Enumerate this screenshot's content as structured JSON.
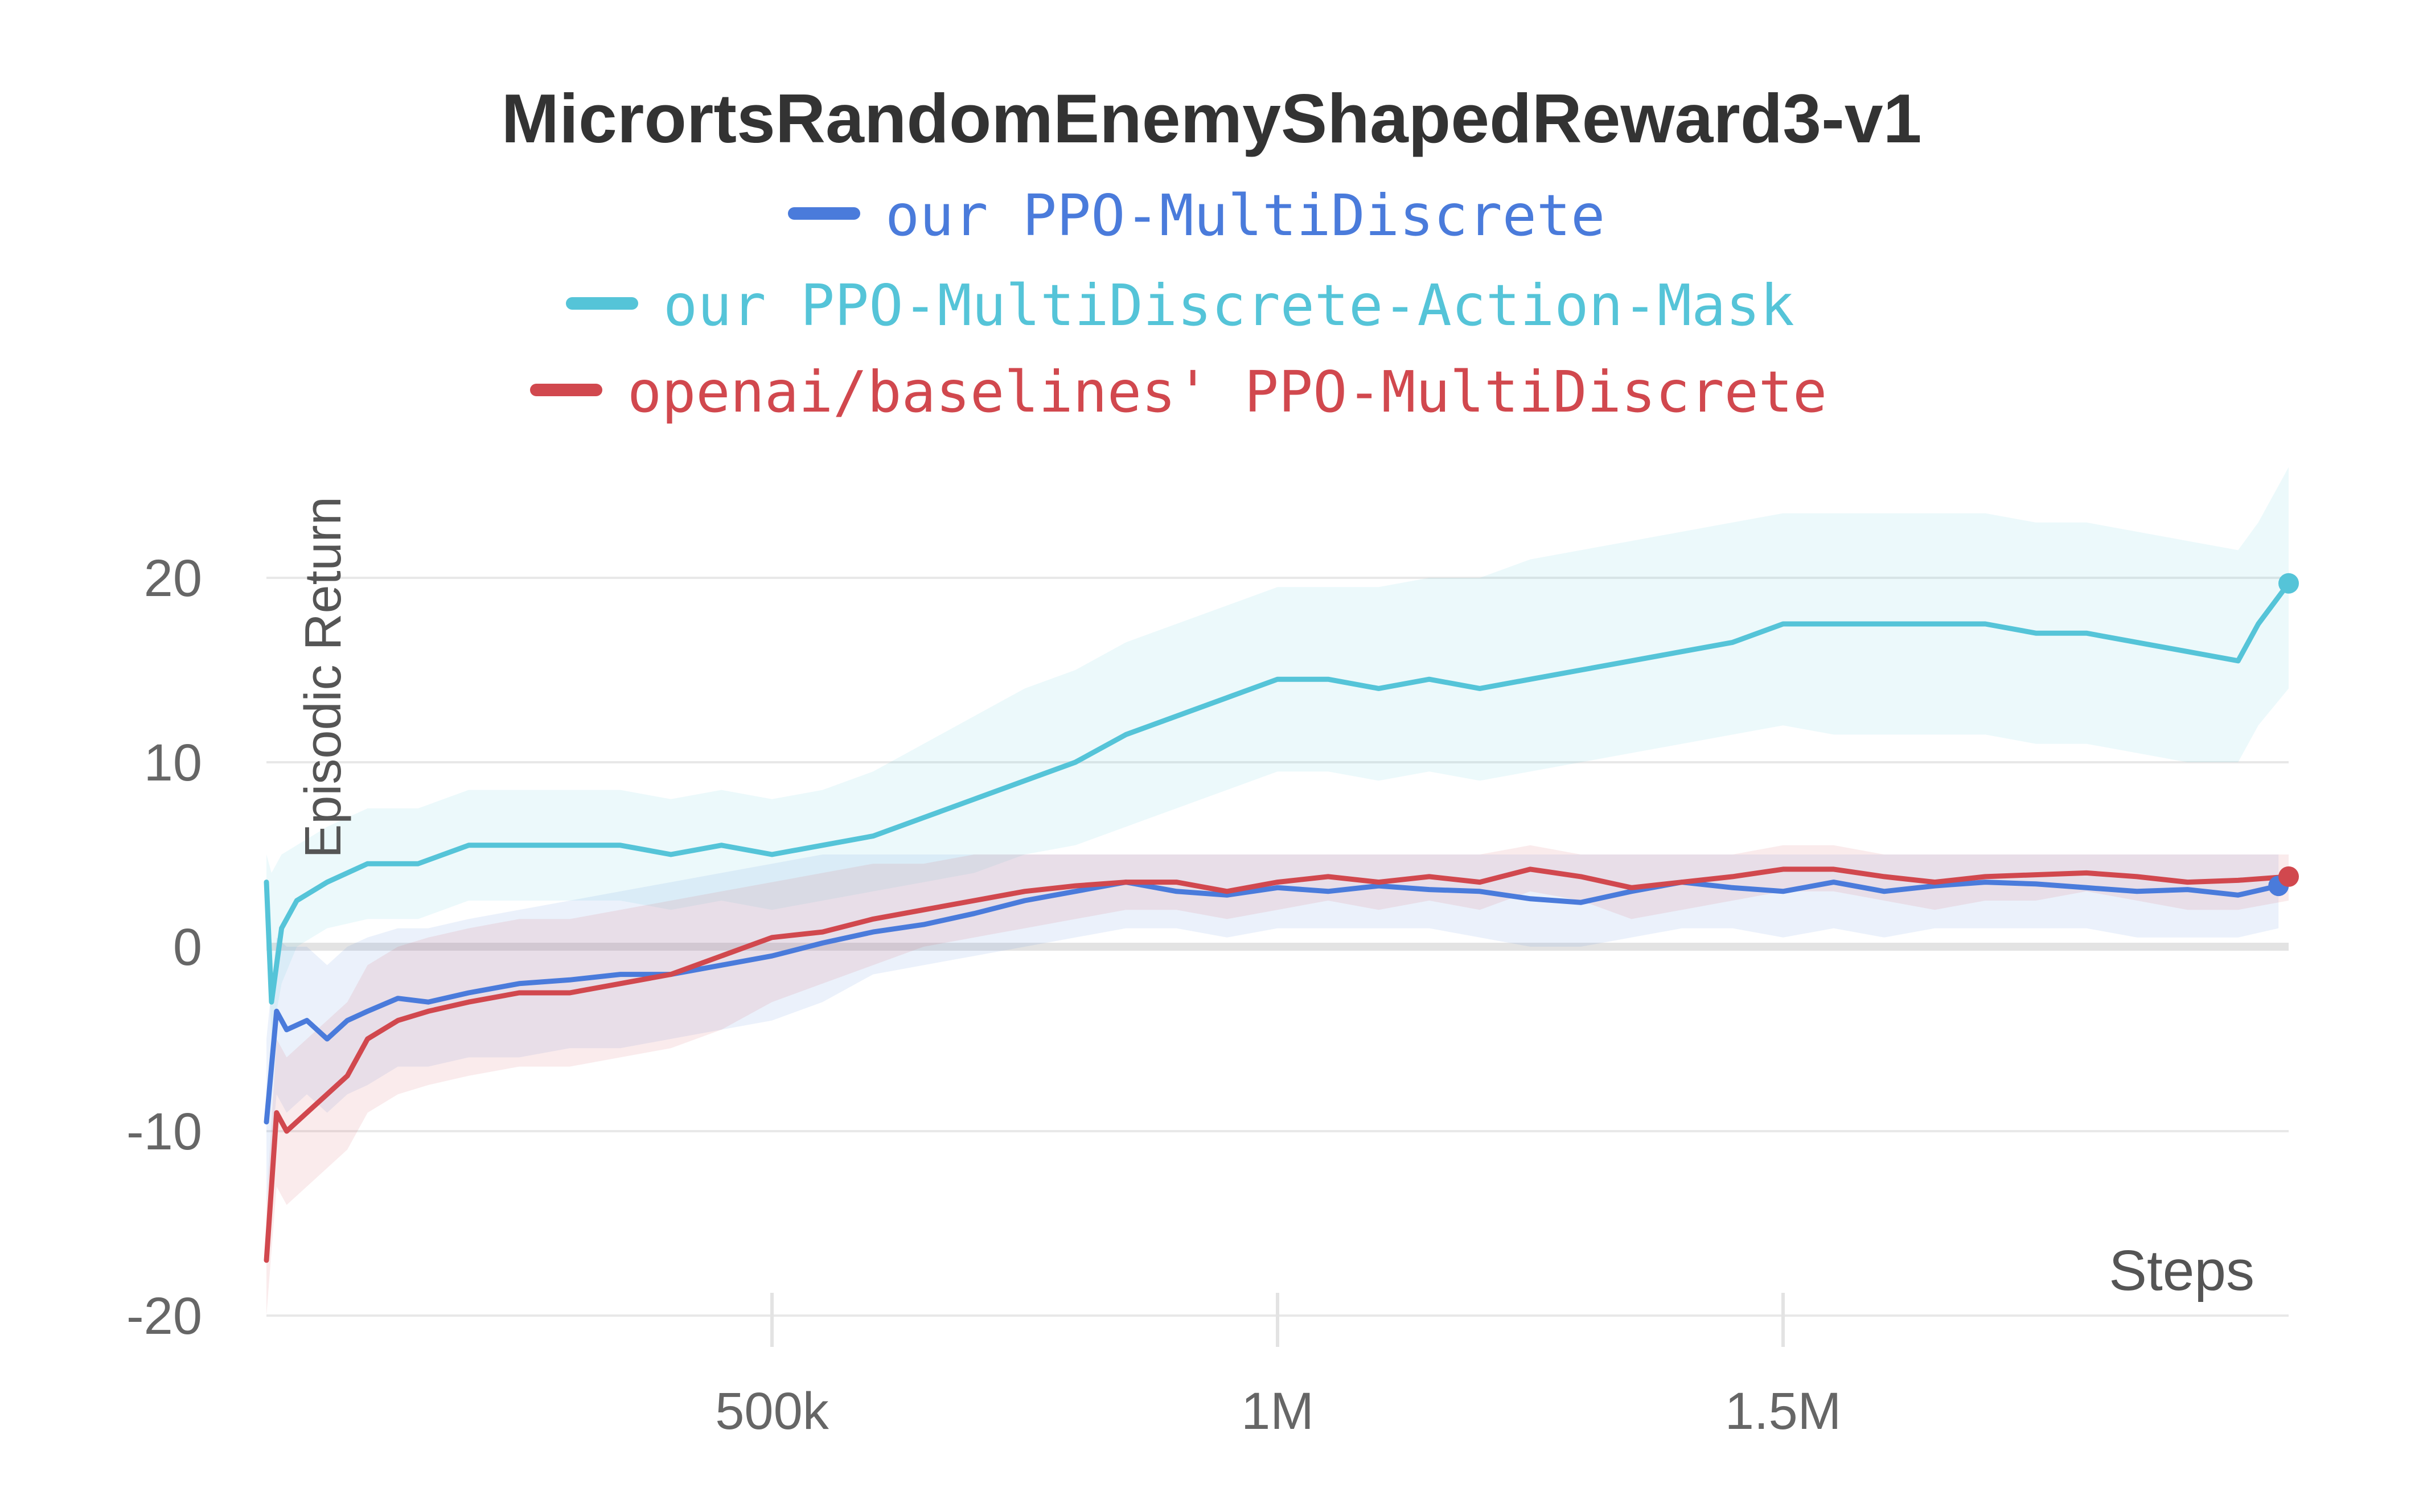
{
  "chart_data": {
    "type": "line",
    "title": "MicrortsRandomEnemyShapedReward3-v1",
    "xlabel": "Steps",
    "ylabel": "Episodic Return",
    "xlim": [
      0,
      2000000
    ],
    "ylim": [
      -20,
      27
    ],
    "x_ticks": [
      500000,
      1000000,
      1500000
    ],
    "x_tick_labels": [
      "500k",
      "1M",
      "1.5M"
    ],
    "y_ticks": [
      -20,
      -10,
      0,
      10,
      20
    ],
    "y_tick_labels": [
      "-20",
      "-10",
      "0",
      "10",
      "20"
    ],
    "grid": true,
    "legend_position": "top",
    "series": [
      {
        "name": "our PPO-MultiDiscrete",
        "color": "#4a7bdb",
        "x": [
          0,
          10000,
          20000,
          40000,
          60000,
          80000,
          100000,
          130000,
          160000,
          200000,
          250000,
          300000,
          350000,
          400000,
          450000,
          500000,
          550000,
          600000,
          650000,
          700000,
          750000,
          800000,
          850000,
          900000,
          950000,
          1000000,
          1050000,
          1100000,
          1150000,
          1200000,
          1250000,
          1300000,
          1350000,
          1400000,
          1450000,
          1500000,
          1550000,
          1600000,
          1650000,
          1700000,
          1750000,
          1800000,
          1850000,
          1900000,
          1950000,
          1990000
        ],
        "values": [
          -9.5,
          -3.5,
          -4.5,
          -4.0,
          -5.0,
          -4.0,
          -3.5,
          -2.8,
          -3.0,
          -2.5,
          -2.0,
          -1.8,
          -1.5,
          -1.5,
          -1.0,
          -0.5,
          0.2,
          0.8,
          1.2,
          1.8,
          2.5,
          3.0,
          3.5,
          3.0,
          2.8,
          3.2,
          3.0,
          3.3,
          3.1,
          3.0,
          2.6,
          2.4,
          3.0,
          3.5,
          3.2,
          3.0,
          3.5,
          3.0,
          3.3,
          3.5,
          3.4,
          3.2,
          3.0,
          3.1,
          2.8,
          3.3
        ],
        "upper": [
          -5,
          0.5,
          0,
          0,
          -1,
          0,
          0.5,
          1,
          1,
          1.5,
          2,
          2.5,
          3,
          3.5,
          4,
          4.5,
          5,
          5,
          5,
          5,
          5,
          5,
          5,
          5,
          5,
          5,
          5,
          5,
          5,
          5,
          5,
          5,
          5,
          5,
          5,
          5,
          5,
          5,
          5,
          5,
          5,
          5,
          5,
          5,
          5,
          5
        ],
        "lower": [
          -14,
          -8,
          -9,
          -8,
          -9,
          -8,
          -7.5,
          -6.5,
          -6.5,
          -6,
          -6,
          -5.5,
          -5.5,
          -5,
          -4.5,
          -4,
          -3,
          -1.5,
          -1,
          -0.5,
          0,
          0.5,
          1,
          1,
          0.5,
          1,
          1,
          1,
          1,
          0.5,
          0,
          0,
          0.5,
          1,
          1,
          0.5,
          1,
          0.5,
          1,
          1,
          1,
          1,
          0.5,
          0.5,
          0.5,
          1
        ]
      },
      {
        "name": "our PPO-MultiDiscrete-Action-Mask",
        "color": "#55c4d8",
        "x": [
          0,
          5000,
          15000,
          30000,
          60000,
          100000,
          150000,
          200000,
          250000,
          300000,
          350000,
          400000,
          450000,
          500000,
          550000,
          600000,
          650000,
          700000,
          750000,
          800000,
          850000,
          900000,
          950000,
          1000000,
          1050000,
          1100000,
          1150000,
          1200000,
          1250000,
          1300000,
          1350000,
          1400000,
          1450000,
          1500000,
          1550000,
          1600000,
          1650000,
          1700000,
          1750000,
          1800000,
          1850000,
          1900000,
          1950000,
          1970000,
          2000000
        ],
        "values": [
          3.5,
          -3.0,
          1.0,
          2.5,
          3.5,
          4.5,
          4.5,
          5.5,
          5.5,
          5.5,
          5.5,
          5.0,
          5.5,
          5.0,
          5.5,
          6.0,
          7.0,
          8.0,
          9.0,
          10.0,
          11.5,
          12.5,
          13.5,
          14.5,
          14.5,
          14.0,
          14.5,
          14.0,
          14.5,
          15.0,
          15.5,
          16.0,
          16.5,
          17.5,
          17.5,
          17.5,
          17.5,
          17.5,
          17.0,
          17.0,
          16.5,
          16.0,
          15.5,
          17.5,
          19.7
        ],
        "upper": [
          5,
          4,
          5,
          5.5,
          6.5,
          7.5,
          7.5,
          8.5,
          8.5,
          8.5,
          8.5,
          8,
          8.5,
          8,
          8.5,
          9.5,
          11,
          12.5,
          14,
          15,
          16.5,
          17.5,
          18.5,
          19.5,
          19.5,
          19.5,
          20,
          20,
          21,
          21.5,
          22,
          22.5,
          23,
          23.5,
          23.5,
          23.5,
          23.5,
          23.5,
          23,
          23,
          22.5,
          22,
          21.5,
          23,
          26
        ],
        "lower": [
          2,
          -5,
          -2,
          0,
          1,
          1.5,
          1.5,
          2.5,
          2.5,
          2.5,
          2.5,
          2,
          2.5,
          2,
          2.5,
          3,
          3.5,
          4,
          5,
          5.5,
          6.5,
          7.5,
          8.5,
          9.5,
          9.5,
          9,
          9.5,
          9,
          9.5,
          10,
          10.5,
          11,
          11.5,
          12,
          11.5,
          11.5,
          11.5,
          11.5,
          11,
          11,
          10.5,
          10,
          10,
          12,
          14
        ]
      },
      {
        "name": "openai/baselines' PPO-MultiDiscrete",
        "color": "#d1484e",
        "x": [
          0,
          10000,
          20000,
          40000,
          60000,
          80000,
          100000,
          130000,
          160000,
          200000,
          250000,
          300000,
          350000,
          400000,
          450000,
          500000,
          550000,
          600000,
          650000,
          700000,
          750000,
          800000,
          850000,
          900000,
          950000,
          1000000,
          1050000,
          1100000,
          1150000,
          1200000,
          1250000,
          1300000,
          1350000,
          1400000,
          1450000,
          1500000,
          1550000,
          1600000,
          1650000,
          1700000,
          1750000,
          1800000,
          1850000,
          1900000,
          1950000,
          2000000
        ],
        "values": [
          -17.0,
          -9.0,
          -10.0,
          -9.0,
          -8.0,
          -7.0,
          -5.0,
          -4.0,
          -3.5,
          -3.0,
          -2.5,
          -2.5,
          -2.0,
          -1.5,
          -0.5,
          0.5,
          0.8,
          1.5,
          2.0,
          2.5,
          3.0,
          3.3,
          3.5,
          3.5,
          3.0,
          3.5,
          3.8,
          3.5,
          3.8,
          3.5,
          4.2,
          3.8,
          3.2,
          3.5,
          3.8,
          4.2,
          4.2,
          3.8,
          3.5,
          3.8,
          3.9,
          4.0,
          3.8,
          3.5,
          3.6,
          3.8
        ],
        "upper": [
          -14,
          -5,
          -6,
          -5,
          -4,
          -3,
          -1,
          0,
          0.5,
          1,
          1.5,
          1.5,
          2,
          2.5,
          3,
          3.5,
          4,
          4.5,
          4.5,
          5,
          5,
          5,
          5,
          5,
          5,
          5,
          5,
          5,
          5,
          5,
          5.5,
          5,
          5,
          5,
          5,
          5.5,
          5.5,
          5,
          5,
          5,
          5,
          5,
          5,
          5,
          5,
          5
        ],
        "lower": [
          -20,
          -13,
          -14,
          -13,
          -12,
          -11,
          -9,
          -8,
          -7.5,
          -7,
          -6.5,
          -6.5,
          -6,
          -5.5,
          -4.5,
          -3,
          -2,
          -1,
          0,
          0.5,
          1,
          1.5,
          2,
          2,
          1.5,
          2,
          2.5,
          2,
          2.5,
          2,
          3,
          2.5,
          1.5,
          2,
          2.5,
          3,
          3,
          2.5,
          2,
          2.5,
          2.5,
          3,
          2.5,
          2,
          2,
          2.5
        ]
      }
    ]
  }
}
